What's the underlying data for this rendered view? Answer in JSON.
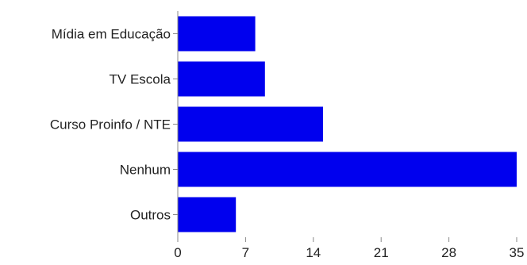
{
  "chart_data": {
    "type": "bar",
    "orientation": "horizontal",
    "categories": [
      "Mídia em Educação",
      "TV Escola",
      "Curso Proinfo / NTE",
      "Nenhum",
      "Outros"
    ],
    "values": [
      8,
      9,
      15,
      35,
      6
    ],
    "title": "",
    "xlabel": "",
    "ylabel": "",
    "xlim": [
      0,
      35
    ],
    "x_ticks": [
      0,
      7,
      14,
      21,
      28,
      35
    ],
    "bar_color": "#0000ee",
    "grid": false,
    "legend": "none"
  }
}
